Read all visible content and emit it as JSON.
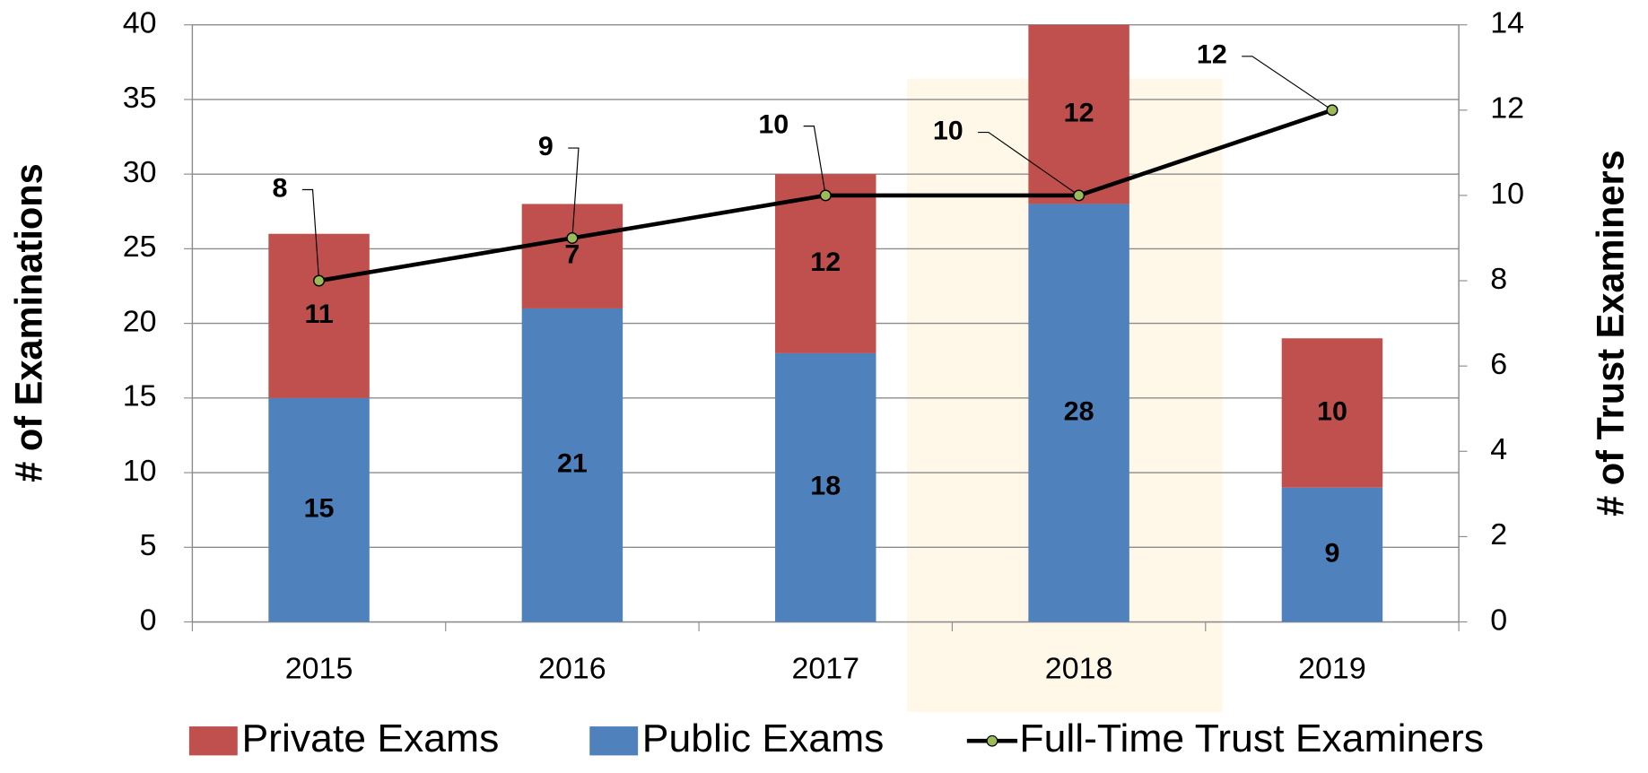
{
  "chart_data": {
    "type": "bar",
    "stacked": true,
    "categories": [
      "2015",
      "2016",
      "2017",
      "2018",
      "2019"
    ],
    "series": [
      {
        "name": "Public Exams",
        "color": "#4f81bd",
        "values": [
          15,
          21,
          18,
          28,
          9
        ]
      },
      {
        "name": "Private Exams",
        "color": "#c0504d",
        "values": [
          11,
          7,
          12,
          12,
          10
        ]
      },
      {
        "name": "Full-Time Trust Examiners",
        "type": "line",
        "axis": "y2",
        "color": "#000000",
        "marker_color": "#9bbb59",
        "values": [
          8,
          9,
          10,
          10,
          12
        ]
      }
    ],
    "legend_order": [
      "Private Exams",
      "Public Exams",
      "Full-Time Trust Examiners"
    ],
    "ylabel": "# of Examinations",
    "y2label": "# of Trust Examiners",
    "ylim": [
      0,
      40
    ],
    "yticks": [
      0,
      5,
      10,
      15,
      20,
      25,
      30,
      35,
      40
    ],
    "y2lim": [
      0,
      14
    ],
    "y2ticks": [
      0,
      2,
      4,
      6,
      8,
      10,
      12,
      14
    ],
    "grid": true,
    "legend": "bottom"
  }
}
